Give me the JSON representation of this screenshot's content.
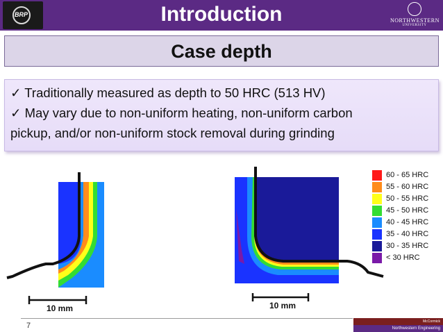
{
  "header": {
    "title": "Introduction",
    "left_logo_text": "BRP",
    "right_logo_name": "NORTHWESTERN",
    "right_logo_sub": "UNIVERSITY",
    "bar_color": "#5b2a84"
  },
  "section": {
    "title": "Case depth"
  },
  "bullets": [
    "✓ Traditionally measured as depth to 50 HRC (513 HV)",
    "✓ May vary due to non-uniform heating, non-uniform carbon",
    "pickup, and/or non-uniform stock removal during grinding"
  ],
  "legend": {
    "items": [
      {
        "label": "60 - 65 HRC",
        "color": "#ff1a1a"
      },
      {
        "label": "55 - 60 HRC",
        "color": "#ff8c1a"
      },
      {
        "label": "50 - 55 HRC",
        "color": "#ffff1a"
      },
      {
        "label": "45 - 50 HRC",
        "color": "#33dd33"
      },
      {
        "label": "40 - 45 HRC",
        "color": "#1a8cff"
      },
      {
        "label": "35 - 40 HRC",
        "color": "#1a33ff"
      },
      {
        "label": "30 - 35 HRC",
        "color": "#1a1a99"
      },
      {
        "label": "< 30 HRC",
        "color": "#7a1aa8"
      }
    ]
  },
  "scale_bars": {
    "left": "10 mm",
    "right": "10 mm"
  },
  "footer": {
    "page_number": "7",
    "brand_top": "McCormick",
    "brand_bottom": "Northwestern Engineering"
  }
}
